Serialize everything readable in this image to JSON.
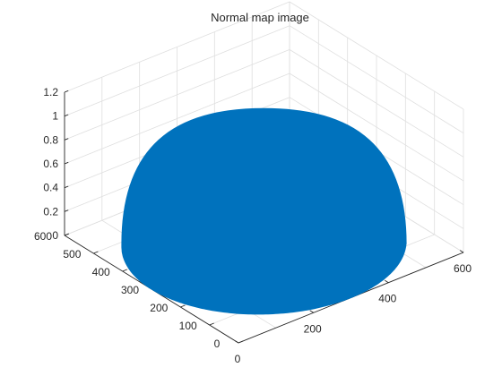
{
  "chart_data": {
    "type": "surface3d",
    "title": "Normal map image",
    "surface": {
      "shape": "hemisphere",
      "color": "#0072BD",
      "center_x": 300,
      "center_y": 300,
      "radius": 300,
      "z_max": 1.0
    },
    "axes": {
      "x": {
        "ticks": [
          "0",
          "200",
          "400",
          "600"
        ],
        "range": [
          0,
          600
        ]
      },
      "y": {
        "ticks": [
          "0",
          "100",
          "200",
          "300",
          "400",
          "500",
          "600"
        ],
        "range": [
          0,
          600
        ]
      },
      "z": {
        "ticks": [
          "0",
          "0.2",
          "0.4",
          "0.6",
          "0.8",
          "1",
          "1.2"
        ],
        "range": [
          0,
          1.2
        ]
      }
    },
    "grid": true,
    "legend": "none"
  },
  "colors": {
    "surface": "#0072BD",
    "grid": "#dfdfdf",
    "axis": "#262626"
  }
}
